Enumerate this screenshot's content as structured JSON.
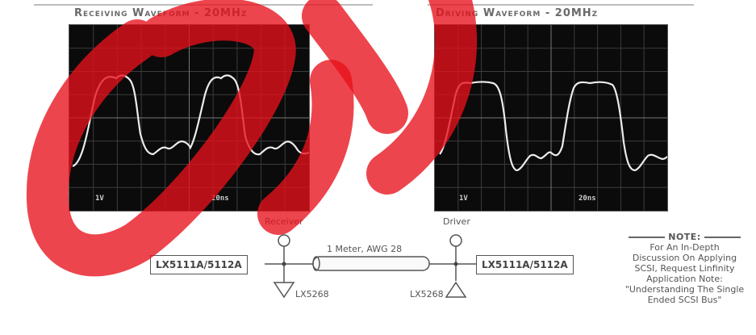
{
  "scopes": {
    "receiving": {
      "title": "Receiving Waveform - 20MHz",
      "scale_left": "1V",
      "scale_right": "20ns"
    },
    "driving": {
      "title": "Driving Waveform - 20MHz",
      "scale_left": "1V",
      "scale_right": "20ns"
    }
  },
  "circuit": {
    "receiver_label": "Receiver",
    "driver_label": "Driver",
    "cable_label": "1 Meter, AWG 28",
    "left_chip": "LX5111A/5112A",
    "right_chip": "LX5111A/5112A",
    "left_terminator": "LX5268",
    "right_terminator": "LX5268"
  },
  "note": {
    "heading": "NOTE:",
    "lines": [
      "For An In-Depth",
      "Discussion On Applying",
      "SCSI, Request Linfinity",
      "Application Note:",
      "\"Understanding The Single",
      "Ended SCSI Bus\""
    ]
  },
  "colors": {
    "watermark": "#e8111b",
    "scope_bg": "#0b0b0b",
    "trace": "#ececec"
  }
}
